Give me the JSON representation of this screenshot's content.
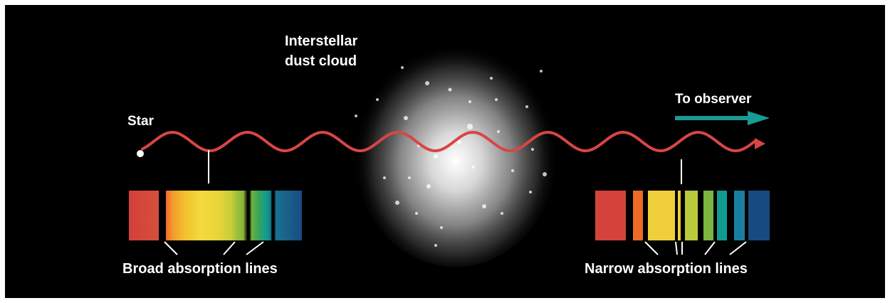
{
  "labels": {
    "star": "Star",
    "cloud_line1": "Interstellar",
    "cloud_line2": "dust cloud",
    "observer": "To observer",
    "broad": "Broad absorption lines",
    "narrow": "Narrow absorption lines"
  },
  "colors": {
    "background": "#000000",
    "wave": "#d94545",
    "observer_arrow": "#1a9a94",
    "text": "#ffffff"
  },
  "spectra": {
    "broad": {
      "absorption_lines": 3,
      "line_width": "broad"
    },
    "narrow": {
      "absorption_lines": 6,
      "line_width": "narrow"
    }
  }
}
